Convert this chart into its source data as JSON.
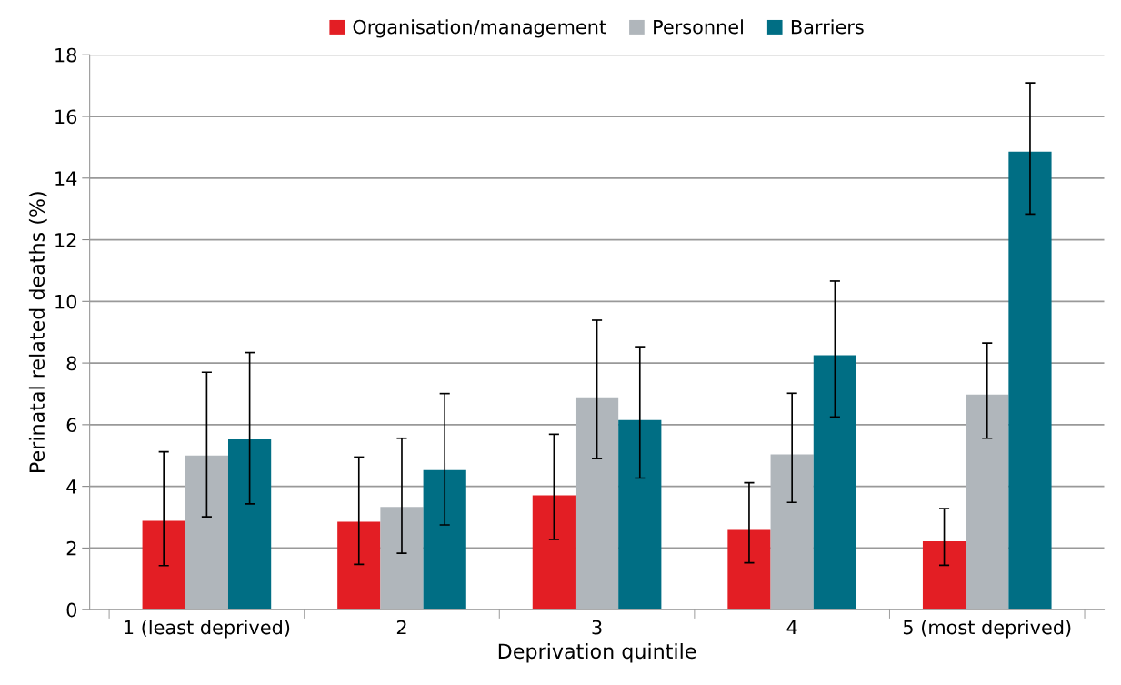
{
  "chart_data": {
    "type": "bar",
    "xlabel": "Deprivation quintile",
    "ylabel": "Perinatal related deaths (%)",
    "categories": [
      "1 (least deprived)",
      "2",
      "3",
      "4",
      "5 (most deprived)"
    ],
    "series": [
      {
        "name": "Organisation/management",
        "color": "#e31e24",
        "values": [
          2.88,
          2.85,
          3.71,
          2.59,
          2.22
        ],
        "errors": [
          [
            1.43,
            5.12
          ],
          [
            1.47,
            4.95
          ],
          [
            2.28,
            5.69
          ],
          [
            1.52,
            4.12
          ],
          [
            1.44,
            3.28
          ]
        ]
      },
      {
        "name": "Personnel",
        "color": "#b0b6bb",
        "values": [
          5.0,
          3.33,
          6.89,
          5.04,
          6.98
        ],
        "errors": [
          [
            3.01,
            7.7
          ],
          [
            1.83,
            5.56
          ],
          [
            4.9,
            9.39
          ],
          [
            3.48,
            7.02
          ],
          [
            5.56,
            8.65
          ]
        ]
      },
      {
        "name": "Barriers",
        "color": "#006e84",
        "values": [
          5.52,
          4.53,
          6.15,
          8.25,
          14.86
        ],
        "errors": [
          [
            3.43,
            8.34
          ],
          [
            2.75,
            7.01
          ],
          [
            4.27,
            8.53
          ],
          [
            6.25,
            10.66
          ],
          [
            12.83,
            17.09
          ]
        ]
      }
    ],
    "ylim": [
      0,
      18
    ],
    "yticks": [
      0,
      2,
      4,
      6,
      8,
      10,
      12,
      14,
      16,
      18
    ],
    "grid": "y",
    "legend": "top"
  }
}
